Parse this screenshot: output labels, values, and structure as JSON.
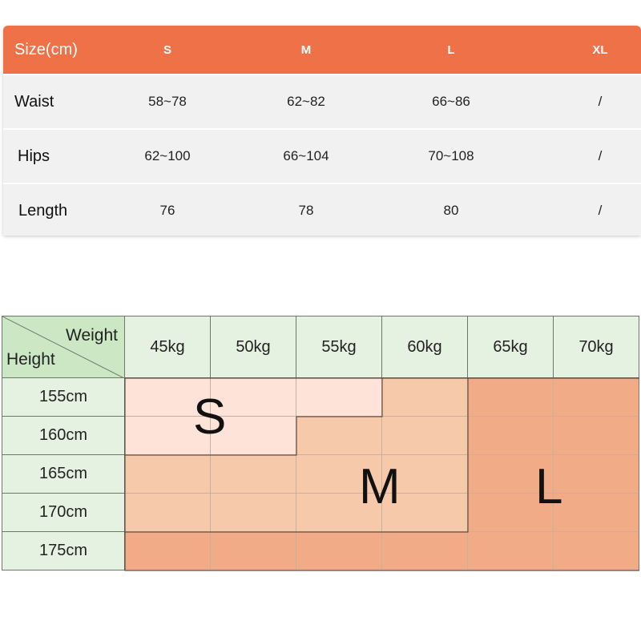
{
  "size_table": {
    "header": {
      "label": "Size(cm)",
      "sizes": [
        "S",
        "M",
        "L",
        "XL"
      ]
    },
    "rows": [
      {
        "label": "Waist",
        "values": [
          "58~78",
          "62~82",
          "66~86",
          "/"
        ]
      },
      {
        "label": "Hips",
        "values": [
          "62~100",
          "66~104",
          "70~108",
          "/"
        ]
      },
      {
        "label": "Length",
        "values": [
          "76",
          "78",
          "80",
          "/"
        ]
      }
    ],
    "colors": {
      "header_bg": "#ee7148",
      "row_bg": "#f1f1f1"
    }
  },
  "hw_chart": {
    "corner": {
      "weight_label": "Weight",
      "height_label": "Height"
    },
    "weights": [
      "45kg",
      "50kg",
      "55kg",
      "60kg",
      "65kg",
      "70kg"
    ],
    "heights": [
      "155cm",
      "160cm",
      "165cm",
      "170cm",
      "175cm"
    ],
    "size_map": [
      [
        "S",
        "S",
        "S",
        "M",
        "L",
        "L"
      ],
      [
        "S",
        "S",
        "M",
        "M",
        "L",
        "L"
      ],
      [
        "M",
        "M",
        "M",
        "M",
        "L",
        "L"
      ],
      [
        "M",
        "M",
        "M",
        "M",
        "L",
        "L"
      ],
      [
        "L",
        "L",
        "L",
        "L",
        "L",
        "L"
      ]
    ],
    "region_labels": {
      "s": "S",
      "m": "M",
      "l": "L"
    },
    "colors": {
      "S": "#fde3d8",
      "M": "#f7c9ab",
      "L": "#f1ab86",
      "header": "#e6f2e1",
      "corner": "#cbe7c4"
    }
  }
}
